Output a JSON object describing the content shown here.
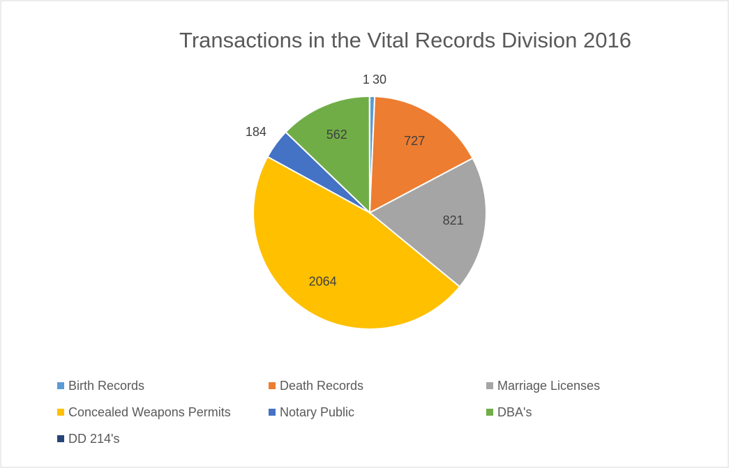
{
  "chart_data": {
    "type": "pie",
    "title": "Transactions in the Vital Records Division 2016",
    "categories": [
      "Birth Records",
      "Death Records",
      "Marriage Licenses",
      "Concealed Weapons Permits",
      "Notary Public",
      "DBA's",
      "DD 214's"
    ],
    "values": [
      30,
      727,
      821,
      2064,
      184,
      562,
      1
    ],
    "colors": [
      "#5b9bd5",
      "#ed7d31",
      "#a5a5a5",
      "#ffc000",
      "#4472c4",
      "#70ad47",
      "#264478"
    ],
    "legend": "bottom"
  }
}
